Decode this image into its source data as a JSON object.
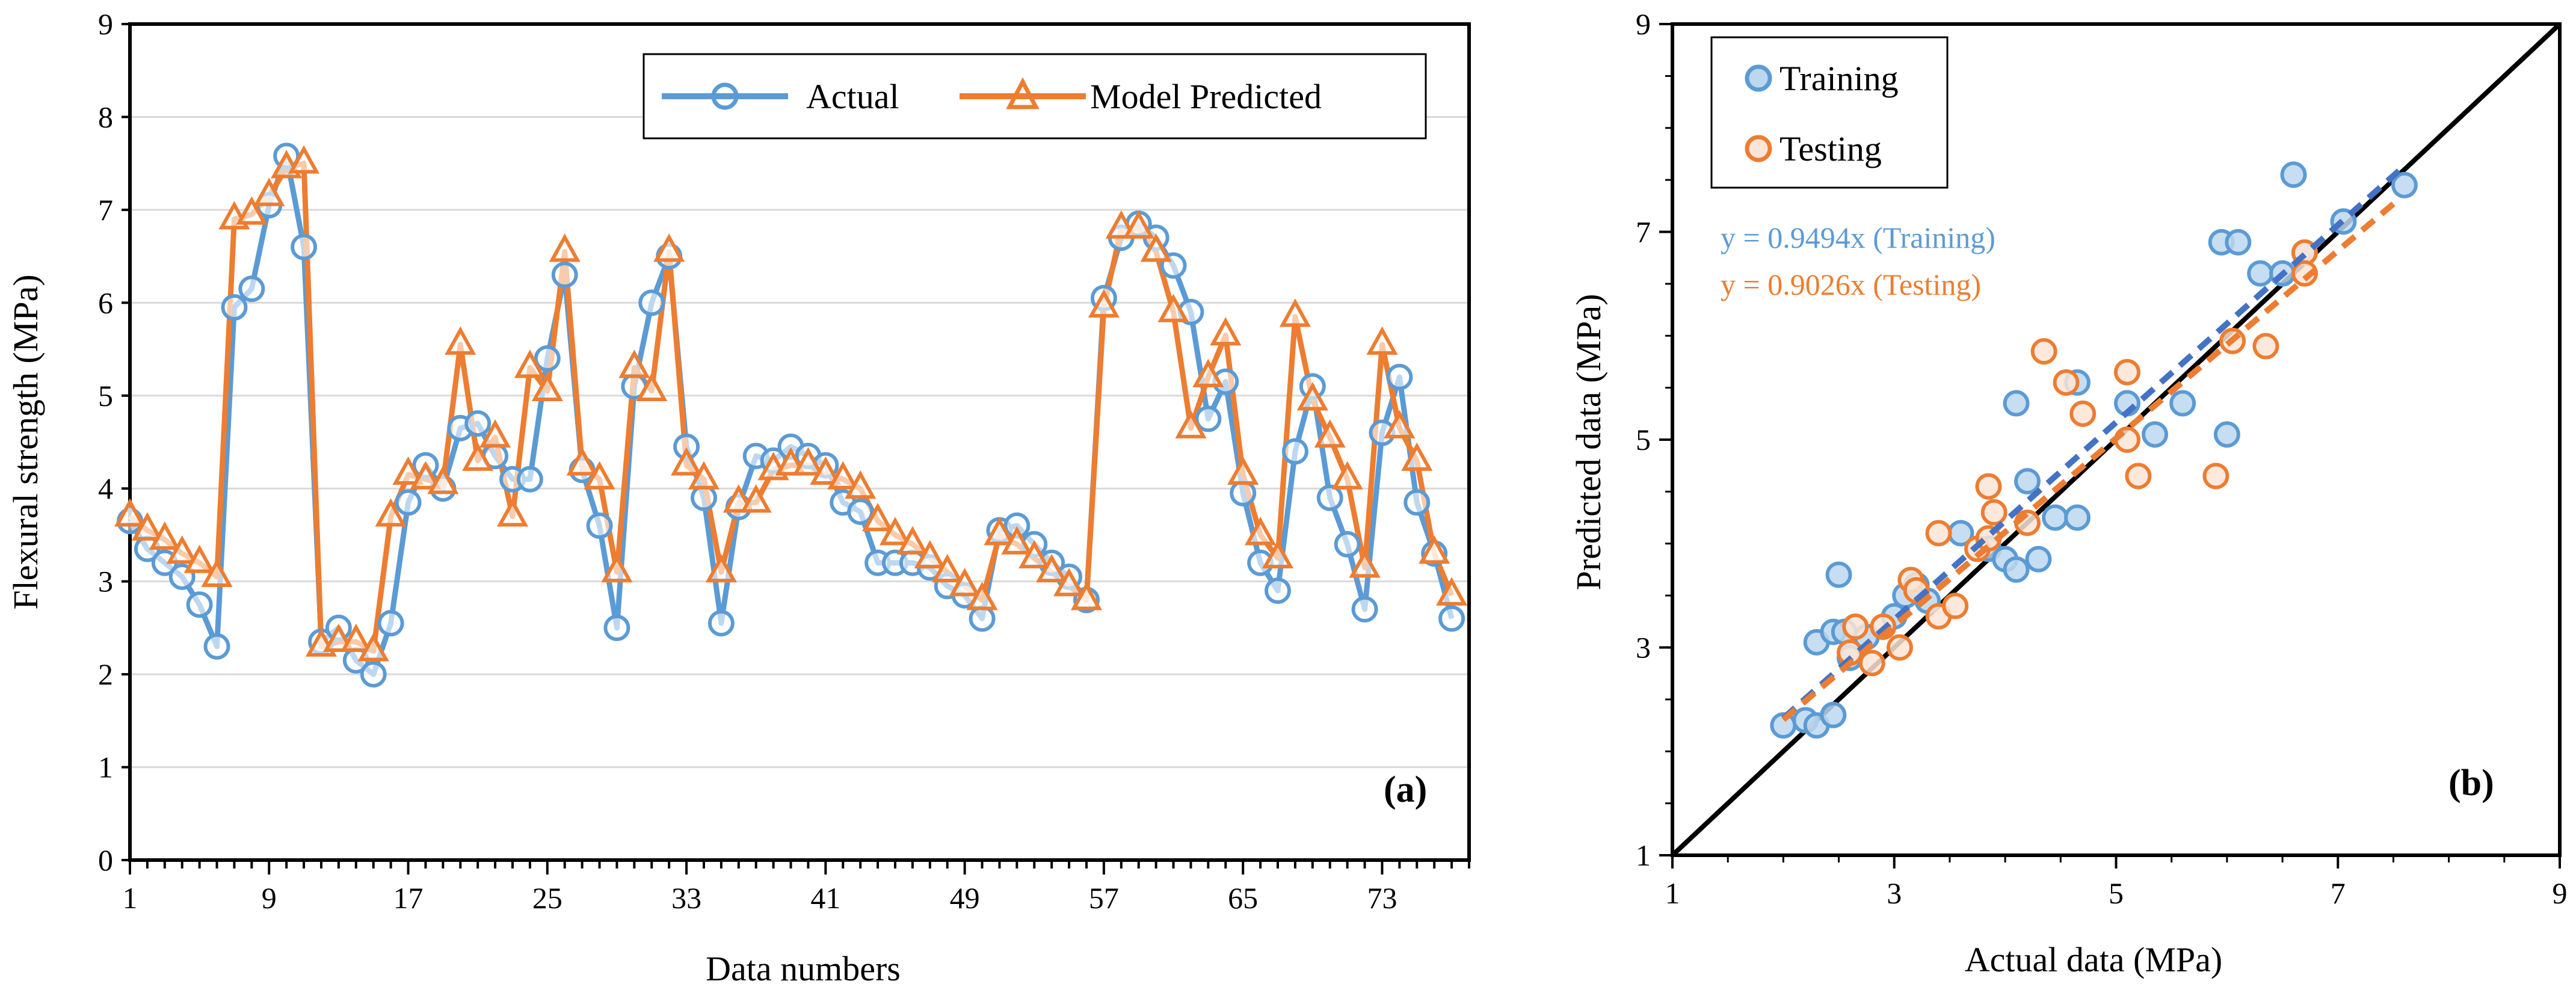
{
  "colors": {
    "actual": "#5B9BD5",
    "predicted": "#ED7D31",
    "identity": "#000000",
    "grid": "#D9D9D9"
  },
  "chart_data": [
    {
      "type": "line",
      "panel_label": "(a)",
      "xlabel": "Data numbers",
      "ylabel": "Flexural strength (MPa)",
      "ylim": [
        0,
        9
      ],
      "xlim": [
        0,
        77
      ],
      "y_ticks": [
        "0",
        "1",
        "2",
        "3",
        "4",
        "5",
        "6",
        "7",
        "8",
        "9"
      ],
      "x_ticks": [
        "1",
        "9",
        "17",
        "25",
        "33",
        "41",
        "49",
        "57",
        "65",
        "73"
      ],
      "grid": "horizontal",
      "legend_position": "top-right",
      "series": [
        {
          "name": "Actual",
          "marker": "circle",
          "values": [
            3.65,
            3.35,
            3.2,
            3.05,
            2.75,
            2.3,
            5.95,
            6.15,
            7.05,
            7.58,
            6.6,
            2.35,
            2.5,
            2.15,
            2.0,
            2.55,
            3.85,
            4.25,
            4.0,
            4.65,
            4.7,
            4.35,
            4.1,
            4.1,
            5.4,
            6.3,
            4.2,
            3.6,
            2.5,
            5.1,
            6.0,
            6.5,
            4.45,
            3.9,
            2.55,
            3.8,
            4.35,
            4.3,
            4.45,
            4.35,
            4.25,
            3.85,
            3.75,
            3.2,
            3.2,
            3.2,
            3.15,
            2.95,
            2.85,
            2.6,
            3.55,
            3.6,
            3.4,
            3.2,
            3.05,
            2.8,
            6.05,
            6.7,
            6.85,
            6.7,
            6.4,
            5.9,
            4.75,
            5.15,
            3.95,
            3.2,
            2.9,
            4.4,
            5.1,
            3.9,
            3.4,
            2.7,
            4.6,
            5.2,
            3.85,
            3.3,
            2.6
          ]
        },
        {
          "name": "Model Predicted",
          "marker": "triangle",
          "values": [
            3.7,
            3.55,
            3.45,
            3.3,
            3.2,
            3.05,
            6.9,
            6.95,
            7.15,
            7.45,
            7.5,
            2.3,
            2.35,
            2.35,
            2.25,
            3.7,
            4.15,
            4.1,
            4.05,
            5.55,
            4.3,
            4.55,
            3.7,
            5.3,
            5.05,
            6.55,
            4.25,
            4.1,
            3.1,
            5.3,
            5.05,
            6.55,
            4.25,
            4.1,
            3.1,
            3.85,
            3.85,
            4.2,
            4.25,
            4.25,
            4.15,
            4.1,
            4.0,
            3.65,
            3.5,
            3.4,
            3.25,
            3.1,
            2.95,
            2.8,
            3.5,
            3.4,
            3.25,
            3.1,
            2.95,
            2.8,
            5.95,
            6.8,
            6.8,
            6.55,
            5.9,
            4.65,
            5.2,
            5.65,
            4.15,
            3.5,
            3.25,
            5.85,
            4.95,
            4.55,
            4.1,
            3.15,
            5.55,
            4.65,
            4.3,
            3.3,
            2.85
          ]
        }
      ]
    },
    {
      "type": "scatter",
      "panel_label": "(b)",
      "xlabel": "Actual data (MPa)",
      "ylabel": "Predicted data (MPa)",
      "xlim": [
        1,
        9
      ],
      "ylim": [
        1,
        9
      ],
      "x_ticks": [
        "1",
        "3",
        "5",
        "7",
        "9"
      ],
      "y_ticks": [
        "1",
        "3",
        "5",
        "7",
        "9"
      ],
      "legend_position": "top-left",
      "identity_line": true,
      "annotations": [
        "y = 0.9494x (Training)",
        "y = 0.9026x (Testing)"
      ],
      "series": [
        {
          "name": "Training",
          "slope": 0.9494,
          "fit_x_range": [
            2.0,
            7.55
          ],
          "points": [
            [
              2.0,
              2.25
            ],
            [
              2.2,
              2.3
            ],
            [
              2.3,
              2.25
            ],
            [
              2.45,
              2.35
            ],
            [
              2.3,
              3.05
            ],
            [
              2.45,
              3.15
            ],
            [
              2.55,
              3.15
            ],
            [
              2.5,
              3.7
            ],
            [
              2.6,
              2.9
            ],
            [
              2.75,
              3.1
            ],
            [
              3.0,
              3.3
            ],
            [
              3.1,
              3.5
            ],
            [
              3.2,
              3.6
            ],
            [
              3.3,
              3.45
            ],
            [
              3.6,
              4.1
            ],
            [
              3.85,
              3.95
            ],
            [
              4.0,
              3.85
            ],
            [
              4.1,
              3.75
            ],
            [
              4.2,
              4.6
            ],
            [
              4.3,
              3.85
            ],
            [
              4.45,
              4.25
            ],
            [
              4.65,
              4.25
            ],
            [
              4.1,
              5.35
            ],
            [
              4.65,
              5.55
            ],
            [
              5.1,
              5.35
            ],
            [
              5.35,
              5.05
            ],
            [
              5.6,
              5.35
            ],
            [
              6.0,
              5.05
            ],
            [
              5.95,
              6.9
            ],
            [
              6.1,
              6.9
            ],
            [
              6.3,
              6.6
            ],
            [
              6.5,
              6.6
            ],
            [
              6.6,
              7.55
            ],
            [
              6.7,
              6.8
            ],
            [
              7.05,
              7.1
            ],
            [
              7.6,
              7.45
            ]
          ]
        },
        {
          "name": "Testing",
          "slope": 0.9026,
          "fit_x_range": [
            2.0,
            7.5
          ],
          "points": [
            [
              2.6,
              2.95
            ],
            [
              2.65,
              3.2
            ],
            [
              2.8,
              2.85
            ],
            [
              2.9,
              3.2
            ],
            [
              3.05,
              3.0
            ],
            [
              3.15,
              3.65
            ],
            [
              3.2,
              3.55
            ],
            [
              3.4,
              3.3
            ],
            [
              3.4,
              4.1
            ],
            [
              3.55,
              3.4
            ],
            [
              3.75,
              3.95
            ],
            [
              3.85,
              4.05
            ],
            [
              3.9,
              4.3
            ],
            [
              3.85,
              4.55
            ],
            [
              4.2,
              4.2
            ],
            [
              4.35,
              5.85
            ],
            [
              4.55,
              5.55
            ],
            [
              4.7,
              5.25
            ],
            [
              5.1,
              5.0
            ],
            [
              5.1,
              5.65
            ],
            [
              5.2,
              4.65
            ],
            [
              5.9,
              4.65
            ],
            [
              6.05,
              5.95
            ],
            [
              6.35,
              5.9
            ],
            [
              6.7,
              6.8
            ],
            [
              6.7,
              6.6
            ]
          ]
        }
      ]
    }
  ]
}
